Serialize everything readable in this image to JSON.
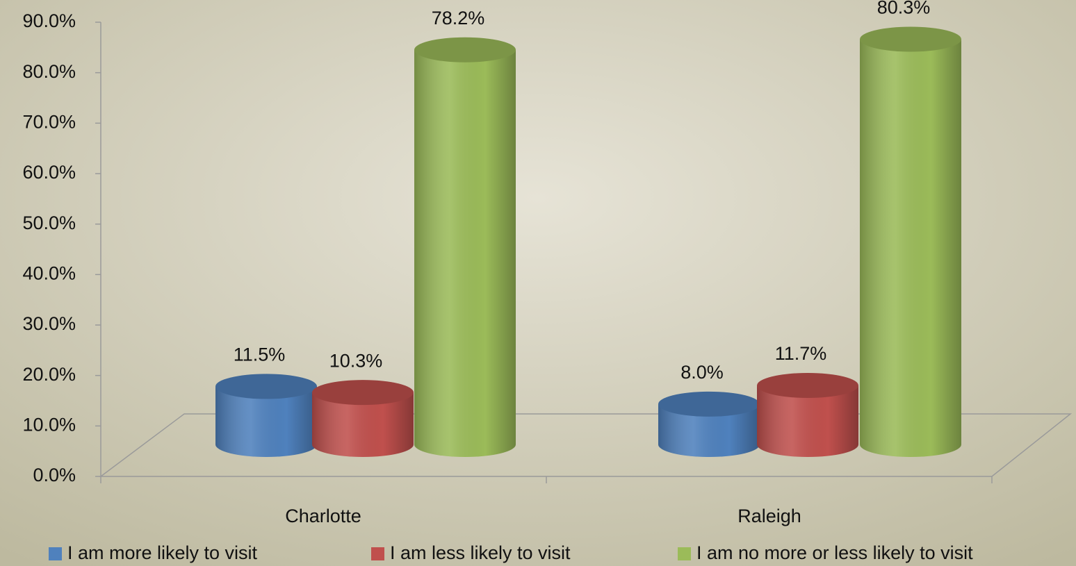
{
  "chart_data": {
    "type": "cylinder-bar",
    "categories": [
      "Charlotte",
      "Raleigh"
    ],
    "series": [
      {
        "name": "I am more likely to visit",
        "color": "#4f81bd",
        "values": [
          11.5,
          8.0
        ],
        "value_labels": [
          "11.5%",
          "8.0%"
        ]
      },
      {
        "name": "I am less likely to visit",
        "color": "#c0504d",
        "values": [
          10.3,
          11.7
        ],
        "value_labels": [
          "10.3%",
          "11.7%"
        ]
      },
      {
        "name": "I am no more or less likely to visit",
        "color": "#9bbb59",
        "values": [
          78.2,
          80.3
        ],
        "value_labels": [
          "78.2%",
          "80.3%"
        ]
      }
    ],
    "ylim": [
      0,
      90
    ],
    "yticks": [
      {
        "value": 0,
        "label": "0.0%"
      },
      {
        "value": 10,
        "label": "10.0%"
      },
      {
        "value": 20,
        "label": "20.0%"
      },
      {
        "value": 30,
        "label": "30.0%"
      },
      {
        "value": 40,
        "label": "40.0%"
      },
      {
        "value": 50,
        "label": "50.0%"
      },
      {
        "value": 60,
        "label": "60.0%"
      },
      {
        "value": 70,
        "label": "70.0%"
      },
      {
        "value": 80,
        "label": "80.0%"
      },
      {
        "value": 90,
        "label": "90.0%"
      }
    ],
    "legend": "bottom"
  }
}
